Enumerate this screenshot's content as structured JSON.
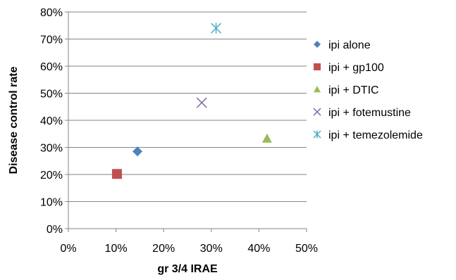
{
  "chart_data": {
    "type": "scatter",
    "title": "",
    "xlabel": "gr 3/4 IRAE",
    "ylabel": "Disease control rate",
    "xlim": [
      0,
      50
    ],
    "ylim": [
      0,
      80
    ],
    "x_ticks": [
      "0%",
      "10%",
      "20%",
      "30%",
      "40%",
      "50%"
    ],
    "y_ticks": [
      "0%",
      "10%",
      "20%",
      "30%",
      "40%",
      "50%",
      "60%",
      "70%",
      "80%"
    ],
    "grid": "horizontal",
    "legend_position": "right",
    "series": [
      {
        "name": "ipi alone",
        "marker": "diamond",
        "color": "#4F81BD",
        "x": [
          14.5
        ],
        "y": [
          28.5
        ]
      },
      {
        "name": "ipi + gp100",
        "marker": "square",
        "color": "#C0504D",
        "x": [
          10.2
        ],
        "y": [
          20.2
        ]
      },
      {
        "name": "ipi + DTIC",
        "marker": "triangle",
        "color": "#9BBB59",
        "x": [
          41.7
        ],
        "y": [
          33.3
        ]
      },
      {
        "name": "ipi + fotemustine",
        "marker": "x",
        "color": "#8064A2",
        "x": [
          28.0
        ],
        "y": [
          46.5
        ]
      },
      {
        "name": "ipi + temezolemide",
        "marker": "star",
        "color": "#4BACC6",
        "x": [
          31.0
        ],
        "y": [
          74.0
        ]
      }
    ]
  }
}
